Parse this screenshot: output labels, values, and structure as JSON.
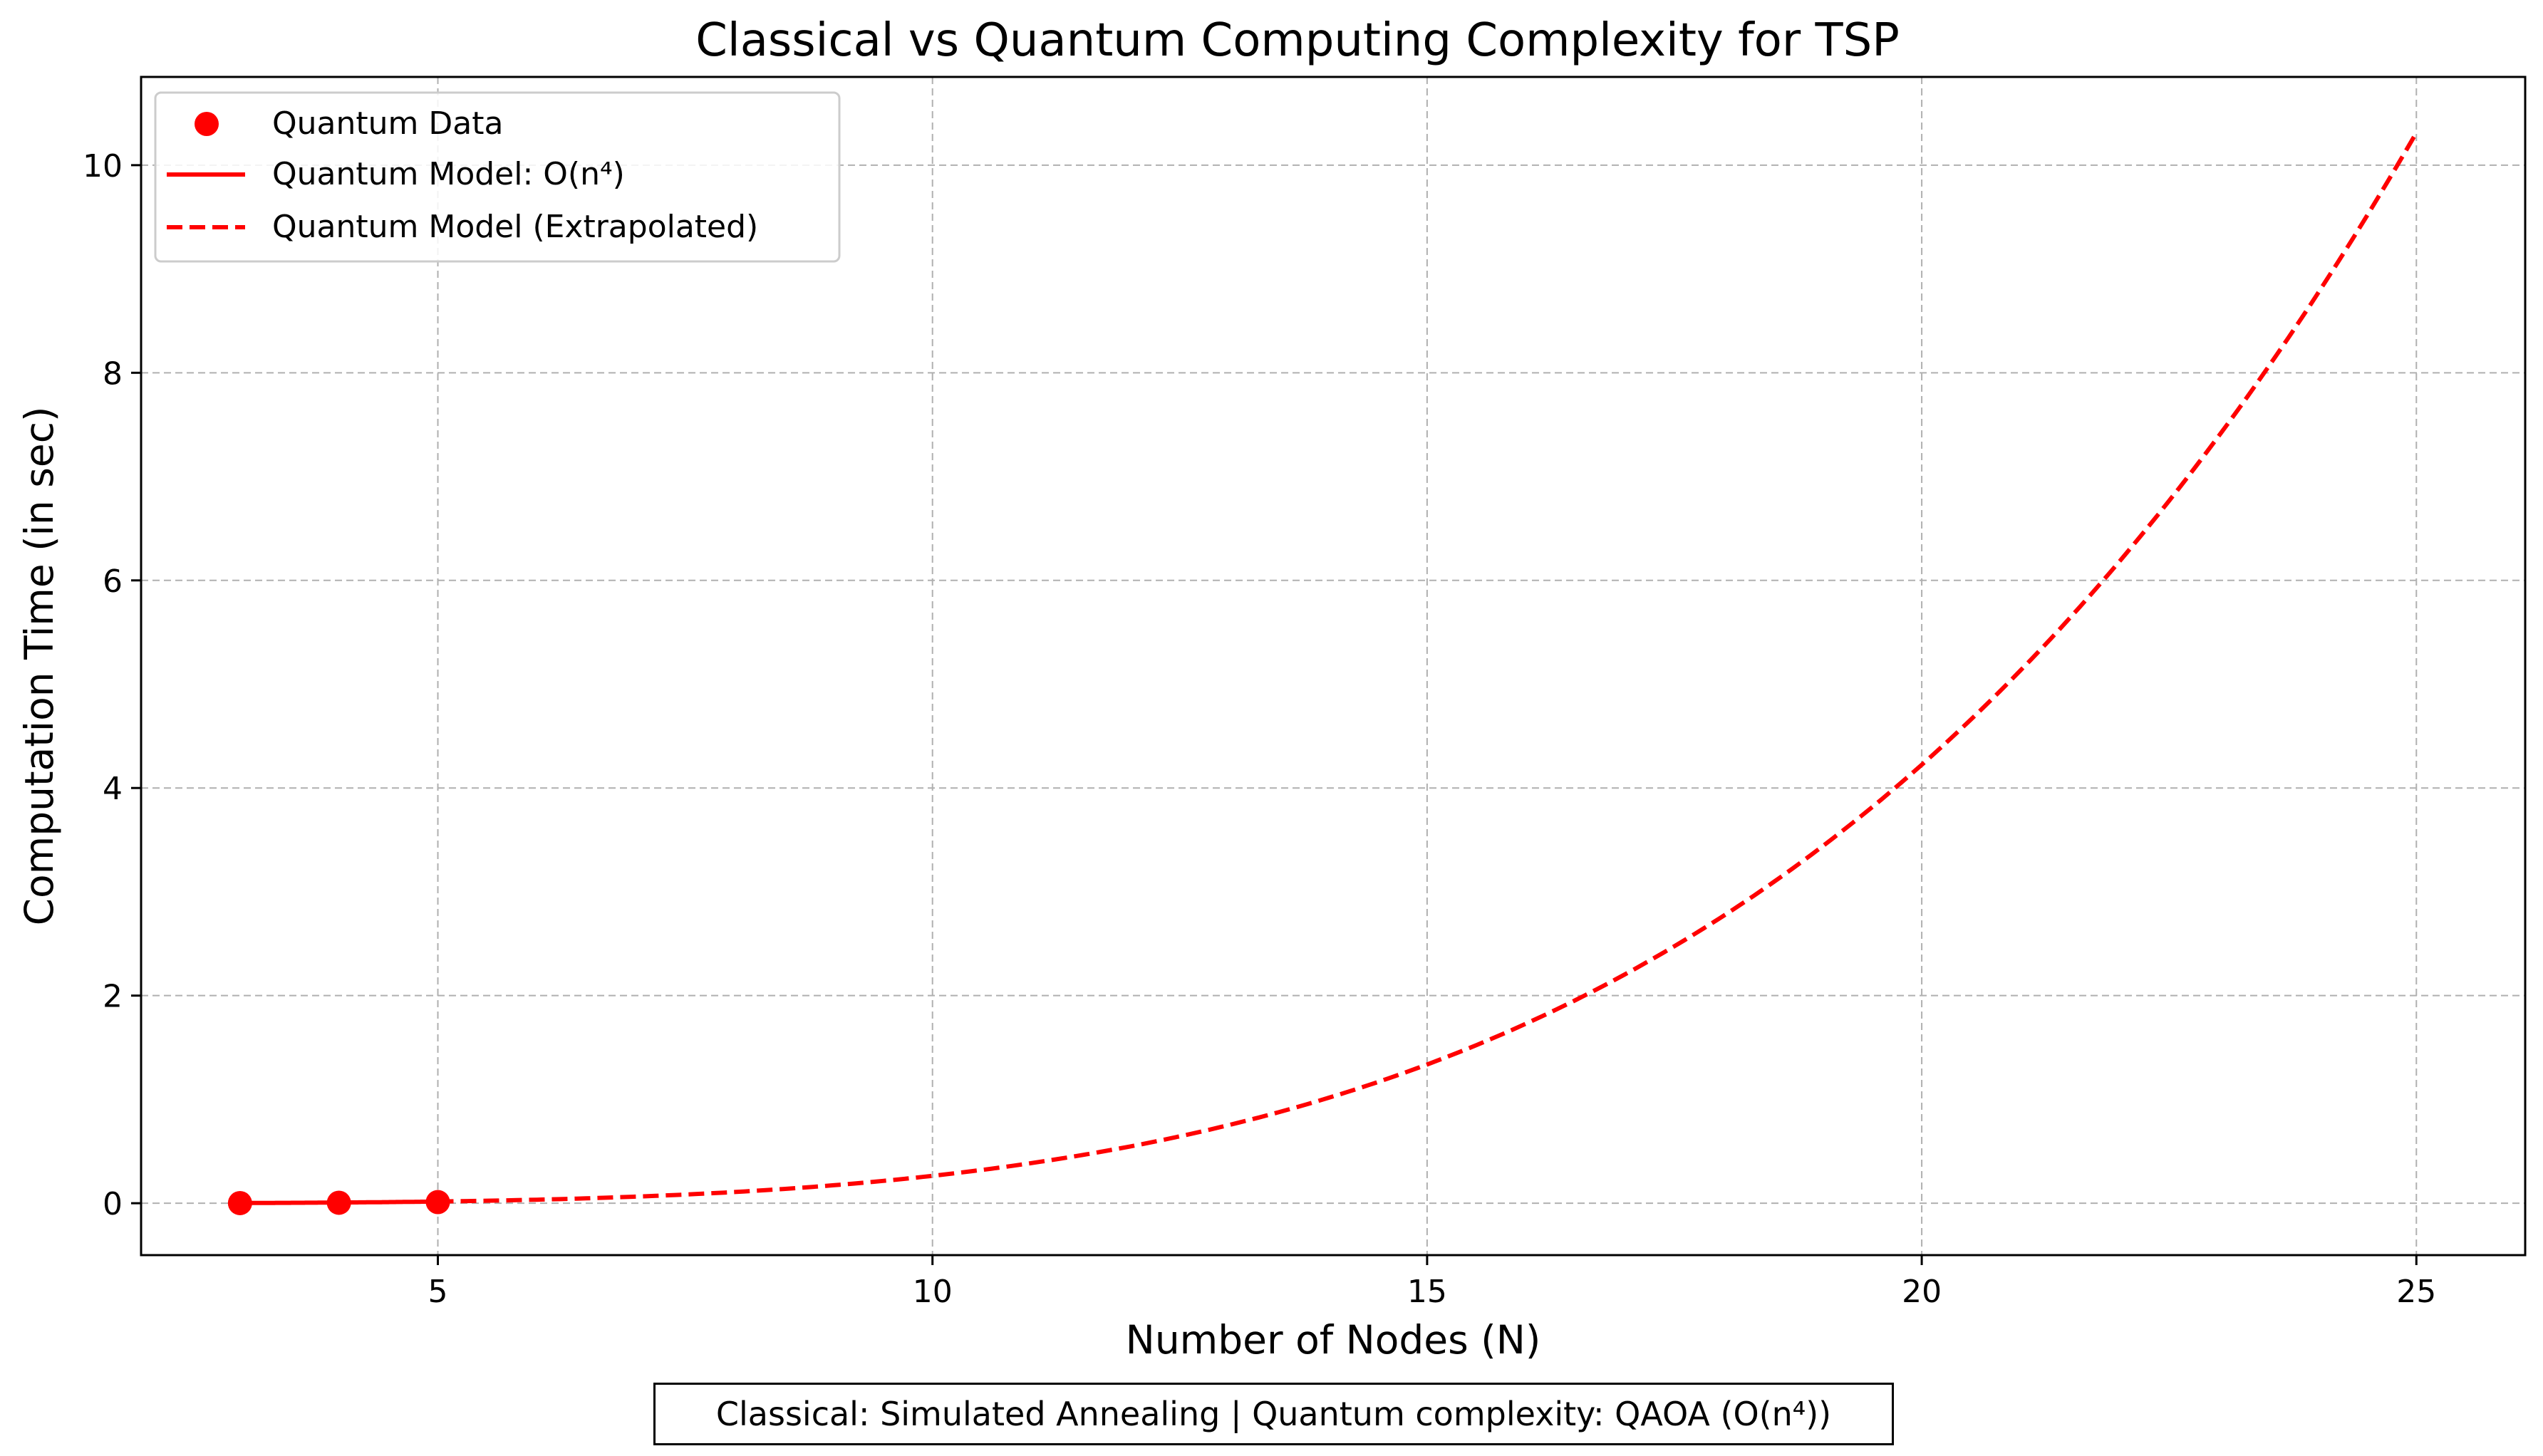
{
  "chart_data": {
    "type": "line",
    "title": "Classical vs Quantum Computing Complexity for TSP",
    "xlabel": "Number of Nodes (N)",
    "ylabel": "Computation Time (in sec)",
    "xlim": [
      2,
      26.1
    ],
    "ylim": [
      -0.5,
      10.85
    ],
    "x_ticks": [
      5,
      10,
      15,
      20,
      25
    ],
    "y_ticks": [
      0,
      2,
      4,
      6,
      8,
      10
    ],
    "grid": true,
    "legend_position": "top-left",
    "series": [
      {
        "name": "Quantum Data",
        "kind": "scatter",
        "color": "#ff0000",
        "x": [
          3,
          4,
          5
        ],
        "y": [
          0.0011,
          0.0045,
          0.011
        ]
      },
      {
        "name": "Quantum Model: O(n⁴)",
        "kind": "line",
        "style": "solid",
        "color": "#ff0000",
        "model": "n^4",
        "coefficient": 2.64e-05,
        "x_range": [
          3,
          5
        ]
      },
      {
        "name": "Quantum Model (Extrapolated)",
        "kind": "line",
        "style": "dashed",
        "color": "#ff0000",
        "model": "n^4",
        "coefficient": 2.64e-05,
        "x_range": [
          5,
          25
        ]
      }
    ],
    "footnote": "Classical: Simulated Annealing | Quantum complexity: QAOA (O(n⁴))"
  }
}
